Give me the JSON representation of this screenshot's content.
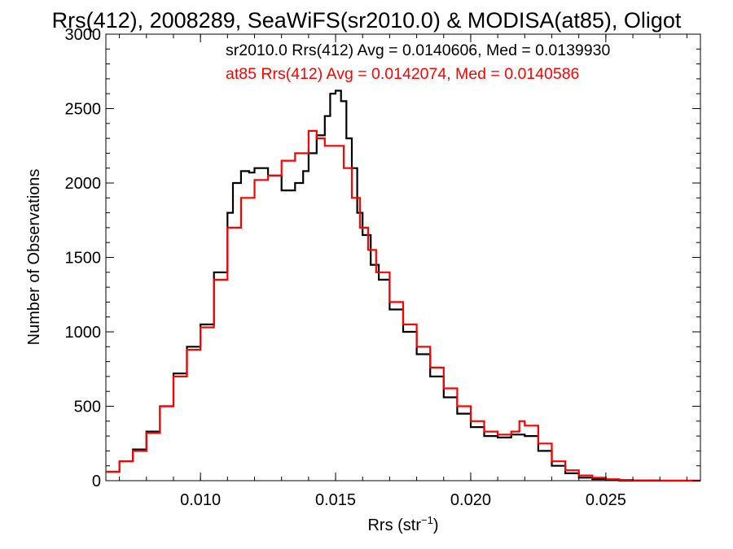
{
  "chart_data": {
    "type": "line",
    "title": "Rrs(412), 2008289, SeaWiFS(sr2010.0) & MODISA(at85), Oligot",
    "xlabel": "Rrs (str",
    "xlabel_sup": "−1",
    "xlabel_end": ")",
    "ylabel": "Number of Observations",
    "xlim": [
      0.0065,
      0.0285
    ],
    "ylim": [
      0,
      3000
    ],
    "x_ticks": [
      0.01,
      0.015,
      0.02,
      0.025
    ],
    "x_tick_labels": [
      "0.010",
      "0.015",
      "0.020",
      "0.025"
    ],
    "y_ticks": [
      0,
      500,
      1000,
      1500,
      2000,
      2500,
      3000
    ],
    "y_tick_labels": [
      "0",
      "500",
      "1000",
      "1500",
      "2000",
      "2500",
      "3000"
    ],
    "grid": false,
    "legend_position": "top-right",
    "series": [
      {
        "name": "sr2010.0 Rrs(412) Avg = 0.0140606, Med = 0.0139930",
        "color": "#000000",
        "step": true,
        "x": [
          0.0065,
          0.007,
          0.0075,
          0.008,
          0.0085,
          0.009,
          0.0095,
          0.01,
          0.0105,
          0.011,
          0.0112,
          0.0115,
          0.0118,
          0.012,
          0.0125,
          0.013,
          0.0135,
          0.0138,
          0.014,
          0.0143,
          0.0146,
          0.0148,
          0.015,
          0.0152,
          0.0154,
          0.0156,
          0.0158,
          0.016,
          0.0163,
          0.0166,
          0.017,
          0.0175,
          0.018,
          0.0185,
          0.019,
          0.0195,
          0.02,
          0.0205,
          0.021,
          0.0215,
          0.022,
          0.0225,
          0.023,
          0.0235,
          0.024,
          0.0245,
          0.025,
          0.0255,
          0.026,
          0.027,
          0.0285
        ],
        "y": [
          60,
          130,
          210,
          330,
          500,
          720,
          900,
          1050,
          1400,
          1800,
          2000,
          2080,
          2070,
          2100,
          2050,
          1950,
          2000,
          2080,
          2200,
          2320,
          2450,
          2600,
          2620,
          2550,
          2300,
          2100,
          1800,
          1650,
          1450,
          1350,
          1150,
          1000,
          850,
          700,
          560,
          450,
          360,
          300,
          290,
          310,
          300,
          200,
          100,
          50,
          20,
          10,
          5,
          0,
          0,
          0,
          0
        ]
      },
      {
        "name": "at85 Rrs(412) Avg = 0.0142074, Med = 0.0140586",
        "color": "#ff0000",
        "step": true,
        "x": [
          0.0065,
          0.007,
          0.0075,
          0.008,
          0.0085,
          0.009,
          0.0095,
          0.01,
          0.0105,
          0.011,
          0.0115,
          0.012,
          0.0125,
          0.013,
          0.0135,
          0.014,
          0.0143,
          0.0146,
          0.015,
          0.0153,
          0.0156,
          0.0159,
          0.0162,
          0.0165,
          0.017,
          0.0175,
          0.018,
          0.0185,
          0.019,
          0.0195,
          0.02,
          0.0205,
          0.021,
          0.0215,
          0.0218,
          0.022,
          0.0225,
          0.023,
          0.0235,
          0.024,
          0.0245,
          0.025,
          0.0255,
          0.026,
          0.027,
          0.0285
        ],
        "y": [
          60,
          130,
          200,
          320,
          500,
          700,
          880,
          1030,
          1350,
          1700,
          1900,
          2020,
          2050,
          2150,
          2200,
          2350,
          2300,
          2250,
          2250,
          2100,
          1900,
          1700,
          1550,
          1400,
          1200,
          1050,
          900,
          760,
          620,
          500,
          400,
          330,
          310,
          330,
          400,
          370,
          250,
          130,
          70,
          35,
          20,
          10,
          5,
          2,
          0,
          0
        ]
      }
    ]
  }
}
